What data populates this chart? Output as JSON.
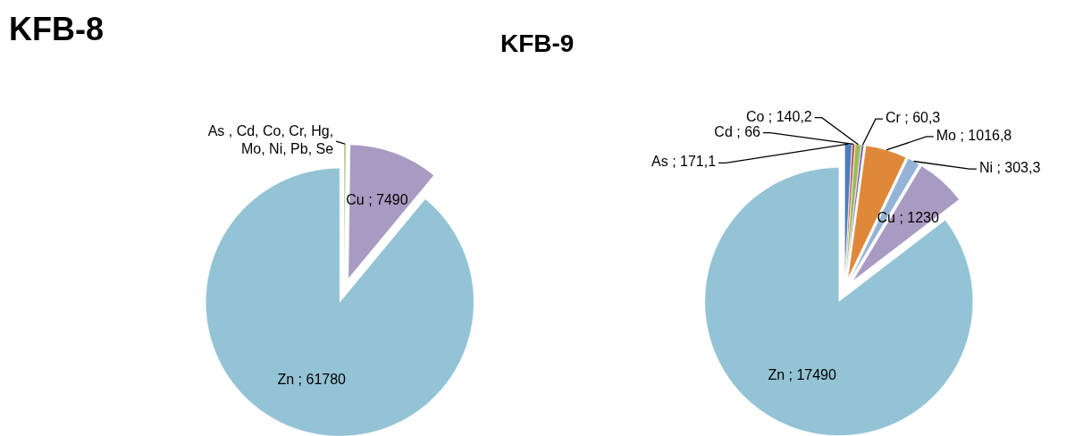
{
  "chart_data": [
    {
      "type": "pie",
      "title": "KFB-8",
      "categories": [
        "As , Cd, Co, Cr, Hg, Mo, Ni, Pb, Se",
        "Cu",
        "Zn"
      ],
      "values": [
        150,
        7490,
        61780
      ],
      "value_labels": [
        null,
        "7490",
        "61780"
      ],
      "colors": [
        "#9bbb59",
        "#a89bc2",
        "#93c3d5"
      ]
    },
    {
      "type": "pie",
      "title": "KFB-9",
      "categories": [
        "As",
        "Cd",
        "Co",
        "Cr",
        "Mo",
        "Ni",
        "Cu",
        "Zn"
      ],
      "values": [
        171.1,
        66,
        140.2,
        60.3,
        1016.8,
        303.3,
        1230,
        17490
      ],
      "value_labels": [
        "171,1",
        "66",
        "140,2",
        "60,3",
        "1016,8",
        "303,3",
        "1230",
        "17490"
      ],
      "colors": [
        "#4a7ebb",
        "#c0504d",
        "#9bbb59",
        "#8064a2",
        "#e0883a",
        "#95b3d7",
        "#a89bc2",
        "#93c3d5"
      ]
    }
  ]
}
